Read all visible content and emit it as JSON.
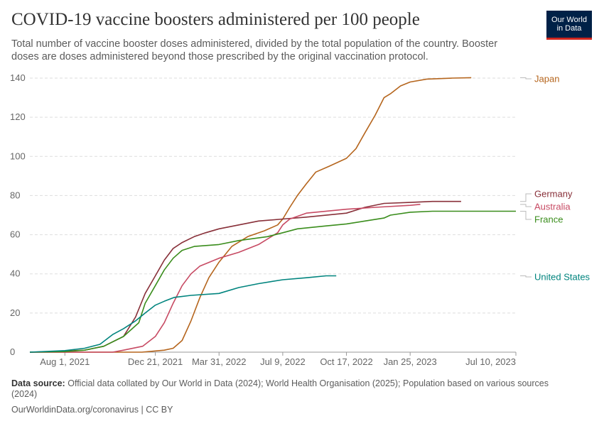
{
  "title": "COVID-19 vaccine boosters administered per 100 people",
  "subtitle": "Total number of vaccine booster doses administered, divided by the total population of the country. Booster doses are doses administered beyond those prescribed by the original vaccination protocol.",
  "logo": {
    "line1": "Our World",
    "line2": "in Data",
    "bg_color": "#002147",
    "accent_color": "#ce261e"
  },
  "footer": {
    "source_label": "Data source:",
    "source_text": "Official data collated by Our World in Data (2024); World Health Organisation (2025); Population based on various sources (2024)",
    "url": "OurWorldinData.org/coronavirus",
    "license": "CC BY"
  },
  "chart_data": {
    "type": "line",
    "title": "COVID-19 vaccine boosters administered per 100 people",
    "xlabel": "",
    "ylabel": "",
    "x_ticks": [
      "Aug 1, 2021",
      "Dec 21, 2021",
      "Mar 31, 2022",
      "Jul 9, 2022",
      "Oct 17, 2022",
      "Jan 25, 2023",
      "Jul 10, 2023"
    ],
    "xlim": [
      "2021-06-07",
      "2023-07-10"
    ],
    "y_ticks": [
      0,
      20,
      40,
      60,
      80,
      100,
      120,
      140
    ],
    "ylim": [
      0,
      140
    ],
    "grid": "horizontal dashed",
    "legend": "right, labels at line ends",
    "series": [
      {
        "name": "Japan",
        "color": "#b5651d",
        "points": [
          [
            "2021-06-07",
            0
          ],
          [
            "2021-11-30",
            0
          ],
          [
            "2021-12-21",
            0.6
          ],
          [
            "2022-01-04",
            1
          ],
          [
            "2022-01-18",
            2
          ],
          [
            "2022-02-01",
            6
          ],
          [
            "2022-02-15",
            16
          ],
          [
            "2022-03-01",
            28
          ],
          [
            "2022-03-15",
            38
          ],
          [
            "2022-03-31",
            46
          ],
          [
            "2022-04-20",
            54
          ],
          [
            "2022-05-15",
            59
          ],
          [
            "2022-06-10",
            62
          ],
          [
            "2022-07-01",
            65
          ],
          [
            "2022-07-09",
            68
          ],
          [
            "2022-07-20",
            74
          ],
          [
            "2022-08-01",
            80
          ],
          [
            "2022-08-15",
            86
          ],
          [
            "2022-08-30",
            92
          ],
          [
            "2022-09-20",
            95
          ],
          [
            "2022-10-17",
            99
          ],
          [
            "2022-11-01",
            104
          ],
          [
            "2022-11-15",
            112
          ],
          [
            "2022-12-01",
            121
          ],
          [
            "2022-12-15",
            130
          ],
          [
            "2022-12-25",
            132
          ],
          [
            "2023-01-10",
            136
          ],
          [
            "2023-01-25",
            138
          ],
          [
            "2023-02-20",
            139.5
          ],
          [
            "2023-04-01",
            140
          ],
          [
            "2023-05-01",
            140.2
          ]
        ]
      },
      {
        "name": "Germany",
        "color": "#883039",
        "points": [
          [
            "2021-06-07",
            0
          ],
          [
            "2021-08-01",
            0.5
          ],
          [
            "2021-09-01",
            1
          ],
          [
            "2021-10-01",
            3
          ],
          [
            "2021-11-01",
            8
          ],
          [
            "2021-11-20",
            18
          ],
          [
            "2021-12-05",
            30
          ],
          [
            "2021-12-21",
            39
          ],
          [
            "2022-01-04",
            47
          ],
          [
            "2022-01-18",
            53
          ],
          [
            "2022-02-01",
            56
          ],
          [
            "2022-02-20",
            59
          ],
          [
            "2022-03-10",
            61
          ],
          [
            "2022-03-31",
            63
          ],
          [
            "2022-05-01",
            65
          ],
          [
            "2022-06-01",
            67
          ],
          [
            "2022-07-09",
            68
          ],
          [
            "2022-08-15",
            69
          ],
          [
            "2022-10-17",
            71
          ],
          [
            "2022-11-15",
            74
          ],
          [
            "2022-12-15",
            76
          ],
          [
            "2023-01-25",
            76.5
          ],
          [
            "2023-03-01",
            77
          ],
          [
            "2023-04-15",
            77
          ]
        ]
      },
      {
        "name": "Australia",
        "color": "#c74a63",
        "points": [
          [
            "2021-06-07",
            0
          ],
          [
            "2021-10-15",
            0
          ],
          [
            "2021-11-01",
            1
          ],
          [
            "2021-12-01",
            3
          ],
          [
            "2021-12-21",
            8
          ],
          [
            "2022-01-04",
            15
          ],
          [
            "2022-01-18",
            25
          ],
          [
            "2022-02-01",
            34
          ],
          [
            "2022-02-15",
            40
          ],
          [
            "2022-03-01",
            44
          ],
          [
            "2022-03-31",
            48
          ],
          [
            "2022-05-01",
            51
          ],
          [
            "2022-06-01",
            55
          ],
          [
            "2022-07-01",
            61
          ],
          [
            "2022-07-09",
            65
          ],
          [
            "2022-07-20",
            68
          ],
          [
            "2022-08-15",
            71
          ],
          [
            "2022-10-17",
            73
          ],
          [
            "2022-12-01",
            74
          ],
          [
            "2023-01-25",
            75
          ],
          [
            "2023-02-10",
            75.5
          ]
        ]
      },
      {
        "name": "France",
        "color": "#3a8d1c",
        "points": [
          [
            "2021-06-07",
            0
          ],
          [
            "2021-08-01",
            0.3
          ],
          [
            "2021-09-01",
            1
          ],
          [
            "2021-10-01",
            3
          ],
          [
            "2021-11-01",
            8
          ],
          [
            "2021-11-25",
            15
          ],
          [
            "2021-12-05",
            25
          ],
          [
            "2021-12-21",
            34
          ],
          [
            "2022-01-04",
            42
          ],
          [
            "2022-01-18",
            48
          ],
          [
            "2022-02-01",
            52
          ],
          [
            "2022-02-20",
            54
          ],
          [
            "2022-03-31",
            55
          ],
          [
            "2022-05-01",
            57
          ],
          [
            "2022-06-15",
            59
          ],
          [
            "2022-07-09",
            61
          ],
          [
            "2022-08-01",
            63
          ],
          [
            "2022-09-15",
            64.5
          ],
          [
            "2022-10-17",
            65.5
          ],
          [
            "2022-11-15",
            67
          ],
          [
            "2022-12-15",
            68.5
          ],
          [
            "2022-12-25",
            70
          ],
          [
            "2023-01-25",
            71.5
          ],
          [
            "2023-03-01",
            72
          ],
          [
            "2023-05-01",
            72
          ],
          [
            "2023-07-10",
            72
          ]
        ]
      },
      {
        "name": "United States",
        "color": "#00847e",
        "points": [
          [
            "2021-06-07",
            0
          ],
          [
            "2021-08-01",
            0.8
          ],
          [
            "2021-09-01",
            2
          ],
          [
            "2021-09-25",
            4
          ],
          [
            "2021-10-15",
            9
          ],
          [
            "2021-11-01",
            12
          ],
          [
            "2021-11-20",
            16
          ],
          [
            "2021-12-05",
            20
          ],
          [
            "2021-12-21",
            24
          ],
          [
            "2022-01-04",
            26
          ],
          [
            "2022-01-20",
            28
          ],
          [
            "2022-02-15",
            29
          ],
          [
            "2022-03-31",
            30
          ],
          [
            "2022-05-01",
            33
          ],
          [
            "2022-06-01",
            35
          ],
          [
            "2022-07-09",
            37
          ],
          [
            "2022-08-15",
            38
          ],
          [
            "2022-09-15",
            39
          ],
          [
            "2022-10-01",
            39
          ]
        ]
      }
    ]
  }
}
